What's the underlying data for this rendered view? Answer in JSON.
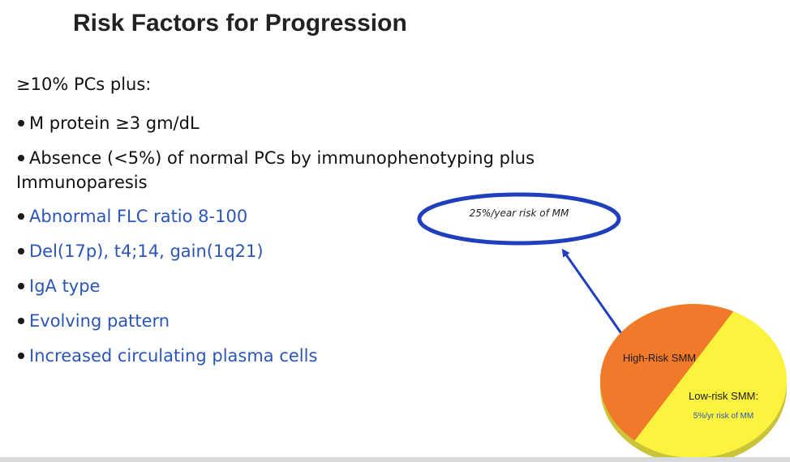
{
  "slide": {
    "title": "Risk Factors for Progression",
    "lead": "≥10% PCs plus:",
    "bullets": [
      {
        "text": "M protein ≥3 gm/dL",
        "color": "#111111"
      },
      {
        "line1": "Absence (<5%) of normal PCs by immunophenotyping plus",
        "line2": "Immunoparesis",
        "color": "#111111"
      },
      {
        "text": "Abnormal FLC ratio 8-100",
        "color": "#2b56b8"
      },
      {
        "text": "Del(17p), t4;14, gain(1q21)",
        "color": "#2b56b8"
      },
      {
        "text": "IgA type",
        "color": "#2b56b8"
      },
      {
        "text": "Evolving pattern",
        "color": "#2b56b8"
      },
      {
        "text": "Increased circulating plasma cells",
        "color": "#2b56b8"
      }
    ]
  },
  "callout": {
    "text": "25%/year risk of MM",
    "border_color": "#1f3fbf"
  },
  "pie": {
    "high_label": "High-Risk SMM",
    "low_label_1": "Low-risk SMM:",
    "low_label_2": "5%/yr risk of MM",
    "high_color": "#f07a2a",
    "low_color": "#fbf33d",
    "arrow_color": "#1f3fbf"
  }
}
